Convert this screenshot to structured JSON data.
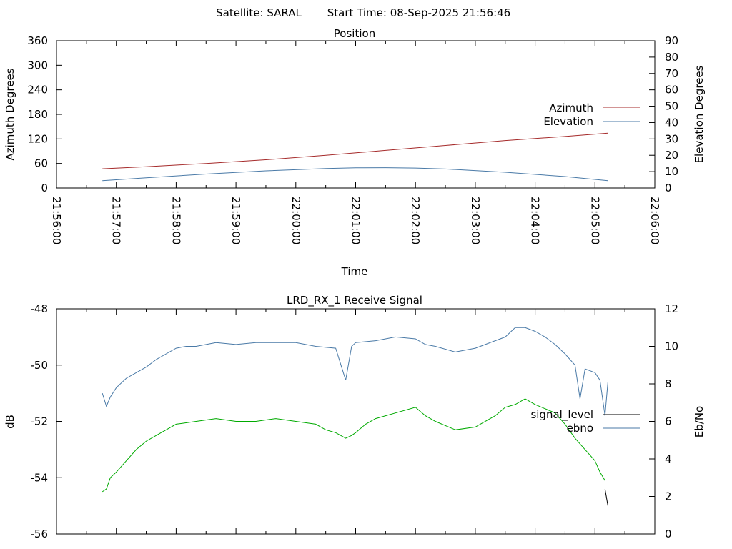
{
  "header": {
    "satellite": "Satellite: SARAL",
    "start_time": "Start Time: 08-Sep-2025 21:56:46"
  },
  "chart_data": [
    {
      "type": "line",
      "title": "Position",
      "xlabel": "Time",
      "ylabel": "Azimuth Degrees",
      "y2label": "Elevation Degrees",
      "xlim": [
        "21:56:00",
        "22:06:00"
      ],
      "x_ticks": [
        "21:56:00",
        "21:57:00",
        "21:58:00",
        "21:59:00",
        "22:00:00",
        "22:01:00",
        "22:02:00",
        "22:03:00",
        "22:04:00",
        "22:05:00",
        "22:06:00"
      ],
      "ylim": [
        0,
        360
      ],
      "y_ticks": [
        0,
        60,
        120,
        180,
        240,
        300,
        360
      ],
      "y2lim": [
        0,
        90
      ],
      "y2_ticks": [
        0,
        10,
        20,
        30,
        40,
        50,
        60,
        70,
        80,
        90
      ],
      "grid": false,
      "legend": "right",
      "series": [
        {
          "name": "Azimuth",
          "axis": "y",
          "color": "#a52a2a",
          "x": [
            "21:56:46",
            "21:57:30",
            "21:58:30",
            "21:59:30",
            "22:00:30",
            "22:01:30",
            "22:02:30",
            "22:03:30",
            "22:04:30",
            "22:05:13"
          ],
          "y": [
            47,
            52,
            60,
            69,
            80,
            92,
            104,
            116,
            126,
            134
          ]
        },
        {
          "name": "Elevation",
          "axis": "y2",
          "color": "#4a7aa7",
          "x": [
            "21:56:46",
            "21:57:30",
            "21:58:30",
            "21:59:30",
            "22:00:30",
            "22:01:00",
            "22:01:30",
            "22:02:00",
            "22:02:30",
            "22:03:30",
            "22:04:30",
            "22:05:13"
          ],
          "y": [
            4.5,
            6.2,
            8.5,
            10.5,
            11.9,
            12.3,
            12.4,
            12.2,
            11.6,
            9.6,
            7.0,
            4.5
          ]
        }
      ]
    },
    {
      "type": "line",
      "title": "LRD_RX_1 Receive Signal",
      "ylabel": "dB",
      "y2label": "Eb/No",
      "xlim": [
        "21:56:00",
        "22:06:00"
      ],
      "ylim": [
        -56,
        -48
      ],
      "y_ticks": [
        -56,
        -54,
        -52,
        -50,
        -48
      ],
      "y2lim": [
        0,
        12
      ],
      "y2_ticks": [
        0,
        2,
        4,
        6,
        8,
        10,
        12
      ],
      "grid": false,
      "legend": "right",
      "series": [
        {
          "name": "signal_level",
          "axis": "y",
          "color": "#000000",
          "x": [
            "22:05:10",
            "22:05:13"
          ],
          "y": [
            -54.4,
            -55.0
          ]
        },
        {
          "name": "ebno",
          "axis": "y2",
          "color": "#4a7aa7",
          "x": [
            "21:56:46",
            "21:56:50",
            "21:56:54",
            "21:57:00",
            "21:57:10",
            "21:57:20",
            "21:57:30",
            "21:57:40",
            "21:57:50",
            "21:58:00",
            "21:58:10",
            "21:58:20",
            "21:58:30",
            "21:58:40",
            "21:59:00",
            "21:59:20",
            "21:59:40",
            "22:00:00",
            "22:00:20",
            "22:00:40",
            "22:00:50",
            "22:00:56",
            "22:01:00",
            "22:01:20",
            "22:01:40",
            "22:02:00",
            "22:02:10",
            "22:02:20",
            "22:02:40",
            "22:03:00",
            "22:03:20",
            "22:03:30",
            "22:03:40",
            "22:03:50",
            "22:04:00",
            "22:04:10",
            "22:04:20",
            "22:04:30",
            "22:04:40",
            "22:04:45",
            "22:04:50",
            "22:05:00",
            "22:05:05",
            "22:05:10",
            "22:05:13"
          ],
          "y": [
            7.5,
            6.8,
            7.3,
            7.8,
            8.3,
            8.6,
            8.9,
            9.3,
            9.6,
            9.9,
            10.0,
            10.0,
            10.1,
            10.2,
            10.1,
            10.2,
            10.2,
            10.2,
            10.0,
            9.9,
            8.2,
            10.0,
            10.2,
            10.3,
            10.5,
            10.4,
            10.1,
            10.0,
            9.7,
            9.9,
            10.3,
            10.5,
            11.0,
            11.0,
            10.8,
            10.5,
            10.1,
            9.6,
            9.0,
            7.2,
            8.8,
            8.6,
            8.2,
            6.3,
            8.1
          ]
        },
        {
          "name": "",
          "axis": "y",
          "color": "#00aa00",
          "x": [
            "21:56:46",
            "21:56:50",
            "21:56:54",
            "21:57:00",
            "21:57:10",
            "21:57:20",
            "21:57:30",
            "21:57:40",
            "21:57:50",
            "21:58:00",
            "21:58:20",
            "21:58:40",
            "21:59:00",
            "21:59:20",
            "21:59:40",
            "22:00:00",
            "22:00:20",
            "22:00:30",
            "22:00:40",
            "22:00:50",
            "22:00:56",
            "22:01:00",
            "22:01:10",
            "22:01:20",
            "22:01:40",
            "22:02:00",
            "22:02:10",
            "22:02:20",
            "22:02:40",
            "22:03:00",
            "22:03:20",
            "22:03:30",
            "22:03:40",
            "22:03:50",
            "22:04:00",
            "22:04:20",
            "22:04:30",
            "22:04:40",
            "22:04:50",
            "22:05:00",
            "22:05:05",
            "22:05:10"
          ],
          "y": [
            -54.5,
            -54.4,
            -54.0,
            -53.8,
            -53.4,
            -53.0,
            -52.7,
            -52.5,
            -52.3,
            -52.1,
            -52.0,
            -51.9,
            -52.0,
            -52.0,
            -51.9,
            -52.0,
            -52.1,
            -52.3,
            -52.4,
            -52.6,
            -52.5,
            -52.4,
            -52.1,
            -51.9,
            -51.7,
            -51.5,
            -51.8,
            -52.0,
            -52.3,
            -52.2,
            -51.8,
            -51.5,
            -51.4,
            -51.2,
            -51.4,
            -51.7,
            -52.1,
            -52.6,
            -53.0,
            -53.4,
            -53.8,
            -54.1
          ]
        }
      ]
    }
  ]
}
